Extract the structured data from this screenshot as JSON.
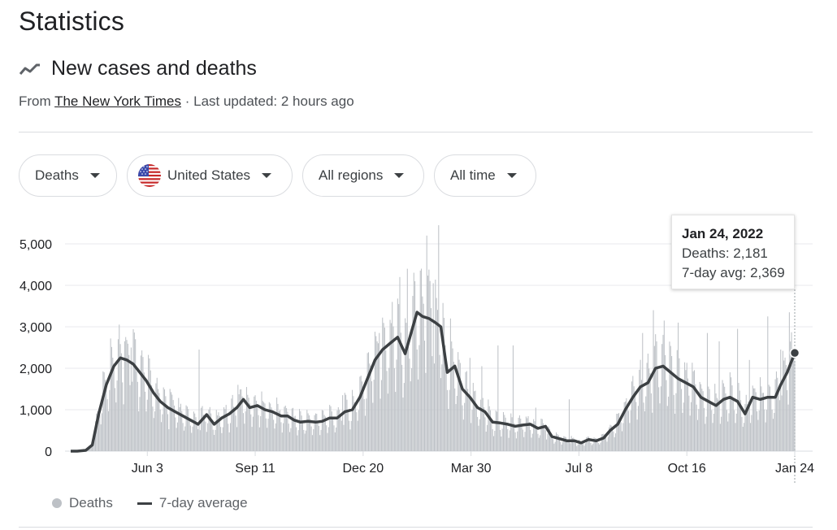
{
  "page": {
    "title": "Statistics"
  },
  "section": {
    "title": "New cases and deaths",
    "icon": "trending-line-icon",
    "source_prefix": "From",
    "source_name": "The New York Times",
    "source_suffix": "· Last updated: 2 hours ago"
  },
  "filters": {
    "metric": "Deaths",
    "country": "United States",
    "country_flag_icon": "us-flag-icon",
    "region": "All regions",
    "time_range": "All time"
  },
  "tooltip": {
    "date": "Jan 24, 2022",
    "deaths_line": "Deaths: 2,181",
    "avg_line": "7-day avg: 2,369"
  },
  "legend": {
    "bars_label": "Deaths",
    "line_label": "7-day average"
  },
  "colors": {
    "bars": "#bdc1c6",
    "line": "#3c4043",
    "grid": "#e8eaed",
    "axis_text": "#202124"
  },
  "chart_data": {
    "type": "bar",
    "title": "New cases and deaths",
    "series_names": [
      "Deaths",
      "7-day average"
    ],
    "y_ticks": [
      0,
      1000,
      2000,
      3000,
      4000,
      5000
    ],
    "y_tick_labels": [
      "0",
      "1,000",
      "2,000",
      "3,000",
      "4,000",
      "5,000"
    ],
    "ylim": [
      0,
      5500
    ],
    "x_ticks": [
      "Jun 3",
      "Sep 11",
      "Dec 20",
      "Mar 30",
      "Jul 8",
      "Oct 16",
      "Jan 24"
    ],
    "x_tick_days": [
      71,
      171,
      271,
      371,
      471,
      571,
      671
    ],
    "x_range_days": [
      0,
      671
    ],
    "start_date": "2020-03-24",
    "end_date": "2022-01-24",
    "series": [
      {
        "name": "7-day average",
        "style": "line",
        "points": [
          [
            0,
            0
          ],
          [
            6,
            0
          ],
          [
            14,
            20
          ],
          [
            20,
            150
          ],
          [
            26,
            900
          ],
          [
            33,
            1600
          ],
          [
            40,
            2050
          ],
          [
            46,
            2250
          ],
          [
            52,
            2200
          ],
          [
            58,
            2100
          ],
          [
            64,
            1900
          ],
          [
            70,
            1700
          ],
          [
            77,
            1400
          ],
          [
            83,
            1200
          ],
          [
            90,
            1050
          ],
          [
            97,
            950
          ],
          [
            104,
            850
          ],
          [
            111,
            750
          ],
          [
            118,
            650
          ],
          [
            126,
            880
          ],
          [
            133,
            650
          ],
          [
            140,
            800
          ],
          [
            147,
            900
          ],
          [
            154,
            1050
          ],
          [
            160,
            1250
          ],
          [
            166,
            1050
          ],
          [
            173,
            1100
          ],
          [
            180,
            1000
          ],
          [
            187,
            950
          ],
          [
            195,
            850
          ],
          [
            201,
            850
          ],
          [
            207,
            750
          ],
          [
            213,
            700
          ],
          [
            220,
            720
          ],
          [
            227,
            700
          ],
          [
            233,
            720
          ],
          [
            240,
            800
          ],
          [
            247,
            800
          ],
          [
            254,
            950
          ],
          [
            261,
            1000
          ],
          [
            268,
            1300
          ],
          [
            275,
            1750
          ],
          [
            282,
            2200
          ],
          [
            289,
            2450
          ],
          [
            296,
            2600
          ],
          [
            303,
            2750
          ],
          [
            310,
            2350
          ],
          [
            316,
            2900
          ],
          [
            321,
            3350
          ],
          [
            326,
            3250
          ],
          [
            332,
            3200
          ],
          [
            338,
            3100
          ],
          [
            343,
            3000
          ],
          [
            349,
            1900
          ],
          [
            356,
            2050
          ],
          [
            363,
            1500
          ],
          [
            370,
            1300
          ],
          [
            377,
            1050
          ],
          [
            384,
            950
          ],
          [
            391,
            700
          ],
          [
            398,
            680
          ],
          [
            405,
            650
          ],
          [
            412,
            600
          ],
          [
            419,
            630
          ],
          [
            426,
            650
          ],
          [
            433,
            550
          ],
          [
            440,
            600
          ],
          [
            446,
            350
          ],
          [
            453,
            300
          ],
          [
            460,
            250
          ],
          [
            467,
            250
          ],
          [
            473,
            200
          ],
          [
            480,
            280
          ],
          [
            487,
            250
          ],
          [
            494,
            320
          ],
          [
            500,
            500
          ],
          [
            507,
            650
          ],
          [
            514,
            1000
          ],
          [
            521,
            1300
          ],
          [
            528,
            1550
          ],
          [
            535,
            1650
          ],
          [
            542,
            2000
          ],
          [
            549,
            2050
          ],
          [
            556,
            1900
          ],
          [
            563,
            1750
          ],
          [
            570,
            1650
          ],
          [
            577,
            1550
          ],
          [
            584,
            1300
          ],
          [
            591,
            1200
          ],
          [
            598,
            1100
          ],
          [
            605,
            1250
          ],
          [
            611,
            1300
          ],
          [
            618,
            1200
          ],
          [
            625,
            900
          ],
          [
            632,
            1300
          ],
          [
            639,
            1250
          ],
          [
            646,
            1300
          ],
          [
            653,
            1300
          ],
          [
            658,
            1600
          ],
          [
            664,
            1900
          ],
          [
            671,
            2369
          ]
        ]
      },
      {
        "name": "Deaths",
        "style": "bars",
        "daily_peaks": [
          [
            44,
            2700
          ],
          [
            50,
            2650
          ],
          [
            56,
            2500
          ],
          [
            60,
            2700
          ],
          [
            92,
            1500
          ],
          [
            119,
            2450
          ],
          [
            155,
            1600
          ],
          [
            252,
            1350
          ],
          [
            286,
            2850
          ],
          [
            298,
            3600
          ],
          [
            305,
            4200
          ],
          [
            312,
            4400
          ],
          [
            319,
            4100
          ],
          [
            330,
            5200
          ],
          [
            336,
            4050
          ],
          [
            341,
            5450
          ],
          [
            352,
            3200
          ],
          [
            370,
            2250
          ],
          [
            381,
            2050
          ],
          [
            396,
            2550
          ],
          [
            410,
            2550
          ],
          [
            431,
            1050
          ],
          [
            462,
            1250
          ],
          [
            530,
            2850
          ],
          [
            540,
            3400
          ],
          [
            550,
            3150
          ],
          [
            563,
            3100
          ],
          [
            590,
            2850
          ],
          [
            601,
            2650
          ],
          [
            618,
            2950
          ],
          [
            629,
            2200
          ],
          [
            646,
            3250
          ],
          [
            658,
            2450
          ],
          [
            666,
            3350
          ],
          [
            671,
            2181
          ]
        ]
      }
    ],
    "highlight": {
      "label": "Jan 24, 2022",
      "deaths": 2181,
      "avg": 2369
    }
  }
}
